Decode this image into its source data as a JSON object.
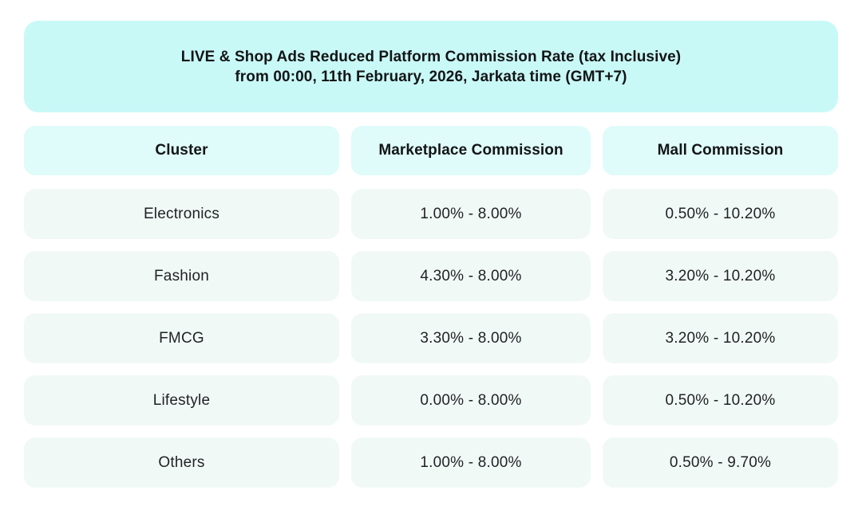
{
  "banner": {
    "title_combined": "LIVE & Shop Ads Reduced Platform Commission Rate (tax Inclusive) from 00:00, 11th February, 2026, Jarkata time (GMT+7)"
  },
  "chart_data": {
    "type": "table",
    "title": "LIVE & Shop Ads Reduced Platform Commission Rate (tax Inclusive) from 00:00, 11th February, 2026, Jarkata time (GMT+7)",
    "title_lines": [
      "LIVE & Shop Ads Reduced Platform Commission Rate (tax Inclusive)",
      "from 00:00, 11th February, 2026, Jarkata time (GMT+7)"
    ],
    "columns": [
      "Cluster",
      "Marketplace Commission",
      "Mall Commission"
    ],
    "rows": [
      [
        "Electronics",
        "1.00% - 8.00%",
        "0.50% - 10.20%"
      ],
      [
        "Fashion",
        "4.30% - 8.00%",
        "3.20% - 10.20%"
      ],
      [
        "FMCG",
        "3.30% - 8.00%",
        "3.20% - 10.20%"
      ],
      [
        "Lifestyle",
        "0.00% - 8.00%",
        "0.50% - 10.20%"
      ],
      [
        "Others",
        "1.00% - 8.00%",
        "0.50% - 9.70%"
      ]
    ],
    "layout_hints": {
      "header_style": "pill-cells",
      "row_style": "pill-cells",
      "alignment": "center"
    }
  },
  "colors": {
    "page_bg": "#ffffff",
    "banner_bg": "#c9f9f7",
    "header_bg": "#dffbfa",
    "row_bg": "#f1f9f7",
    "title_text": "#131516",
    "cell_text": "#1f2123"
  }
}
